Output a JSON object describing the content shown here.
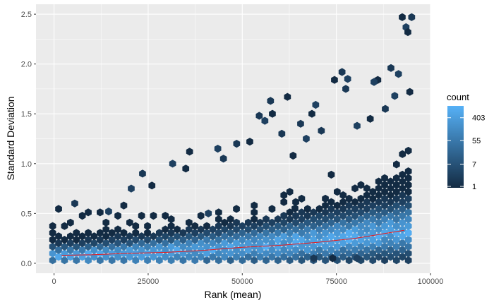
{
  "chart_data": {
    "type": "hexbin",
    "title": "",
    "xlabel": "Rank (mean)",
    "ylabel": "Standard Deviation",
    "xlim": [
      -4800,
      100000
    ],
    "ylim": [
      -0.1,
      2.6
    ],
    "x_ticks": [
      0,
      25000,
      50000,
      75000,
      100000
    ],
    "x_tick_labels": [
      "0",
      "25000",
      "50000",
      "75000",
      "100000"
    ],
    "y_ticks": [
      0.0,
      0.5,
      1.0,
      1.5,
      2.0,
      2.5
    ],
    "y_tick_labels": [
      "0.0",
      "0.5",
      "1.0",
      "1.5",
      "2.0",
      "2.5"
    ],
    "grid": true,
    "legend": {
      "title": "count",
      "position": "right",
      "scale": "log",
      "breaks": [
        403,
        55,
        7,
        1
      ],
      "break_labels": [
        "403",
        "55",
        "7",
        "1"
      ],
      "count_range": [
        1,
        1000
      ],
      "low_color": "#132B43",
      "high_color": "#56B1F7"
    },
    "trend_line": {
      "color": "#e8191b",
      "x": [
        2000,
        10000,
        20000,
        30000,
        40000,
        50000,
        60000,
        70000,
        80000,
        88000,
        93000
      ],
      "y": [
        0.08,
        0.085,
        0.1,
        0.11,
        0.13,
        0.16,
        0.18,
        0.21,
        0.25,
        0.3,
        0.33
      ]
    },
    "outlier_points": [
      {
        "x": 92500,
        "y": 2.47
      },
      {
        "x": 95000,
        "y": 2.47
      },
      {
        "x": 93500,
        "y": 2.37
      },
      {
        "x": 94000,
        "y": 2.32
      },
      {
        "x": 89500,
        "y": 1.96
      },
      {
        "x": 91500,
        "y": 1.9
      },
      {
        "x": 86000,
        "y": 1.84
      },
      {
        "x": 76500,
        "y": 1.92
      },
      {
        "x": 78000,
        "y": 1.85
      },
      {
        "x": 74500,
        "y": 1.84
      },
      {
        "x": 77500,
        "y": 1.75
      },
      {
        "x": 85000,
        "y": 1.82
      },
      {
        "x": 62000,
        "y": 1.67
      },
      {
        "x": 57500,
        "y": 1.63
      },
      {
        "x": 56000,
        "y": 1.43
      },
      {
        "x": 58000,
        "y": 1.5
      },
      {
        "x": 65500,
        "y": 1.4
      },
      {
        "x": 69500,
        "y": 1.59
      },
      {
        "x": 68500,
        "y": 1.5
      },
      {
        "x": 54500,
        "y": 1.48
      },
      {
        "x": 43500,
        "y": 1.15
      },
      {
        "x": 36000,
        "y": 1.12
      },
      {
        "x": 45000,
        "y": 1.05
      },
      {
        "x": 31500,
        "y": 1.0
      },
      {
        "x": 35000,
        "y": 0.95
      },
      {
        "x": 23500,
        "y": 0.9
      },
      {
        "x": 20500,
        "y": 0.75
      },
      {
        "x": 26000,
        "y": 0.78
      },
      {
        "x": 5500,
        "y": 0.6
      },
      {
        "x": 14500,
        "y": 0.52
      },
      {
        "x": 63500,
        "y": 1.08
      },
      {
        "x": 71000,
        "y": 1.33
      },
      {
        "x": 80500,
        "y": 1.38
      },
      {
        "x": 84000,
        "y": 1.45
      },
      {
        "x": 88000,
        "y": 1.55
      },
      {
        "x": 90500,
        "y": 1.68
      },
      {
        "x": 94500,
        "y": 1.72
      },
      {
        "x": 60500,
        "y": 1.3
      },
      {
        "x": 67000,
        "y": 1.25
      },
      {
        "x": 52000,
        "y": 1.22
      },
      {
        "x": 48500,
        "y": 1.2
      },
      {
        "x": 41000,
        "y": 0.5
      },
      {
        "x": 64000,
        "y": 0.55
      },
      {
        "x": 69000,
        "y": 0.05
      },
      {
        "x": 80500,
        "y": 0.05
      },
      {
        "x": 74000,
        "y": 0.05
      }
    ]
  }
}
